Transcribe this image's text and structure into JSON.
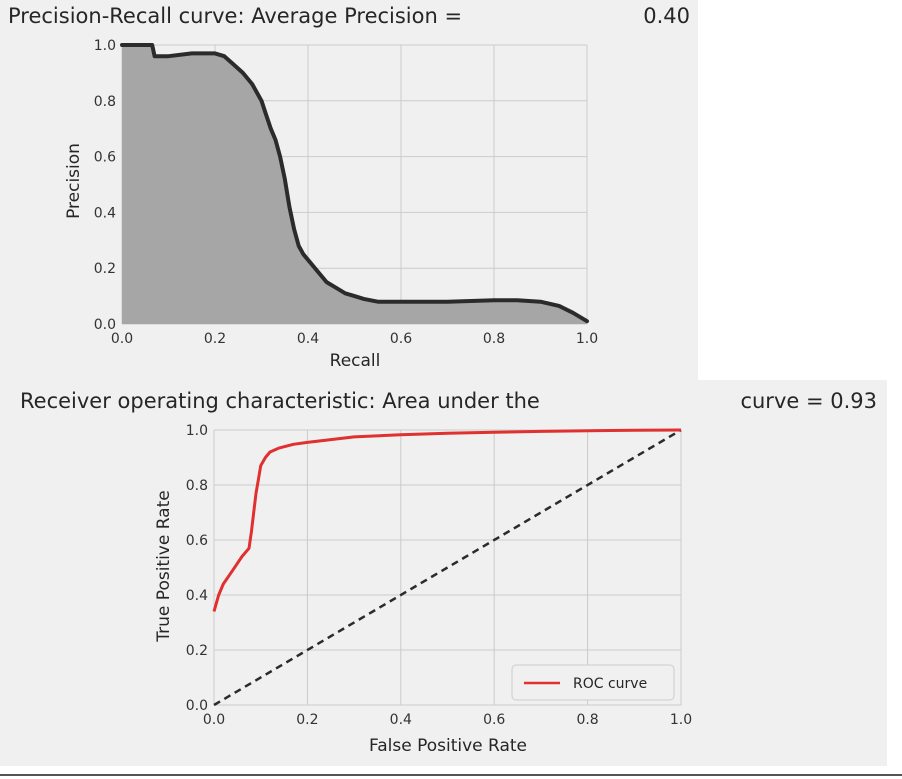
{
  "chart_data": [
    {
      "type": "area",
      "title_left": "Precision-Recall curve: Average Precision =",
      "title_right": "0.40",
      "xlabel": "Recall",
      "ylabel": "Precision",
      "xlim": [
        0,
        1
      ],
      "ylim": [
        0,
        1
      ],
      "x_ticks": [
        "0.0",
        "0.2",
        "0.4",
        "0.6",
        "0.8",
        "1.0"
      ],
      "y_ticks": [
        "0.0",
        "0.2",
        "0.4",
        "0.6",
        "0.8",
        "1.0"
      ],
      "grid": true,
      "colors": {
        "line": "#2b2b2b",
        "fill": "#a6a6a6",
        "background": "#f0f0f0"
      },
      "series": [
        {
          "x": [
            0.0,
            0.065,
            0.07,
            0.1,
            0.15,
            0.2,
            0.22,
            0.24,
            0.26,
            0.28,
            0.3,
            0.31,
            0.32,
            0.33,
            0.34,
            0.35,
            0.36,
            0.37,
            0.38,
            0.39,
            0.4,
            0.42,
            0.44,
            0.46,
            0.48,
            0.5,
            0.52,
            0.55,
            0.6,
            0.7,
            0.8,
            0.85,
            0.9,
            0.94,
            0.97,
            1.0
          ],
          "y": [
            1.0,
            1.0,
            0.96,
            0.96,
            0.97,
            0.97,
            0.96,
            0.93,
            0.9,
            0.86,
            0.8,
            0.75,
            0.7,
            0.66,
            0.6,
            0.52,
            0.42,
            0.34,
            0.28,
            0.25,
            0.23,
            0.19,
            0.15,
            0.13,
            0.11,
            0.1,
            0.09,
            0.08,
            0.08,
            0.08,
            0.085,
            0.085,
            0.08,
            0.065,
            0.04,
            0.01
          ]
        }
      ]
    },
    {
      "type": "line",
      "title_left": "Receiver operating characteristic: Area under the",
      "title_right": "curve = 0.93",
      "xlabel": "False Positive Rate",
      "ylabel": "True Positive Rate",
      "xlim": [
        0,
        1
      ],
      "ylim": [
        0,
        1
      ],
      "x_ticks": [
        "0.0",
        "0.2",
        "0.4",
        "0.6",
        "0.8",
        "1.0"
      ],
      "y_ticks": [
        "0.0",
        "0.2",
        "0.4",
        "0.6",
        "0.8",
        "1.0"
      ],
      "grid": true,
      "legend_position": "lower-right",
      "colors": {
        "roc": "#e03030",
        "diagonal": "#2b2b2b",
        "background": "#f0f0f0"
      },
      "series": [
        {
          "name": "ROC curve",
          "x": [
            0.0,
            0.005,
            0.01,
            0.02,
            0.04,
            0.06,
            0.075,
            0.08,
            0.085,
            0.09,
            0.095,
            0.1,
            0.11,
            0.12,
            0.14,
            0.17,
            0.2,
            0.25,
            0.3,
            0.4,
            0.5,
            0.6,
            0.7,
            0.8,
            0.9,
            1.0
          ],
          "y": [
            0.34,
            0.37,
            0.4,
            0.44,
            0.49,
            0.54,
            0.57,
            0.63,
            0.7,
            0.77,
            0.82,
            0.87,
            0.9,
            0.92,
            0.935,
            0.948,
            0.955,
            0.965,
            0.975,
            0.983,
            0.988,
            0.992,
            0.995,
            0.997,
            0.999,
            1.0
          ]
        },
        {
          "x": [
            0,
            1
          ],
          "y": [
            0,
            1
          ],
          "style": "dashed"
        }
      ]
    }
  ]
}
